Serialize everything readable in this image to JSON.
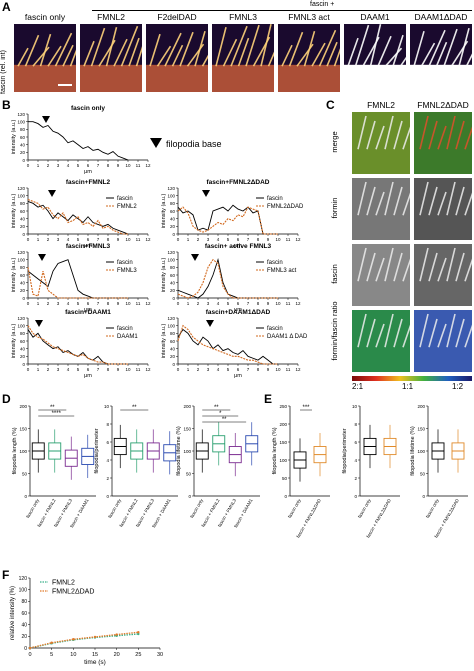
{
  "panelA": {
    "letter": "A",
    "header": "fascin +",
    "ylabel": "fascin (rel. int)",
    "labels": [
      "fascin only",
      "FMNL2",
      "F2delDAD",
      "FMNL3",
      "FMNL3 act",
      "DAAM1",
      "DAAM1ΔDAD"
    ]
  },
  "panelB": {
    "letter": "B",
    "legend_marker": "filopodia base",
    "plots": [
      {
        "title": "fascin only",
        "series": [
          "fascin"
        ]
      },
      {
        "title": "fascin+FMNL2",
        "series": [
          "fascin",
          "FMNL2"
        ]
      },
      {
        "title": "fascin+FMNL2ΔDAD",
        "series": [
          "fascin",
          "FMNL2ΔDAD"
        ]
      },
      {
        "title": "fascin+FMNL3",
        "series": [
          "fascin",
          "FMNL3"
        ]
      },
      {
        "title": "fascin+ active FMNL3",
        "series": [
          "fascin",
          "FMNL3 act"
        ]
      },
      {
        "title": "fascin+DAAM1",
        "series": [
          "fascin",
          "DAAM1"
        ]
      },
      {
        "title": "fascin+DAAM1ΔDAD",
        "series": [
          "fascin",
          "DAAM1 Δ DAD"
        ]
      }
    ],
    "ylabel": "intensity (a.u.)",
    "xlabel": "μm",
    "xticks": [
      "0",
      "1",
      "2",
      "3",
      "4",
      "5",
      "6",
      "7",
      "8",
      "9",
      "10",
      "11",
      "12"
    ],
    "yticks": [
      "0",
      "20",
      "40",
      "60",
      "80",
      "100",
      "120"
    ]
  },
  "panelC": {
    "letter": "C",
    "col_labels": [
      "FMNL2",
      "FMNL2ΔDAD"
    ],
    "row_labels": [
      "merge",
      "formin",
      "fascin",
      "formin/fascin ratio"
    ],
    "ratio_ticks": [
      "2:1",
      "1:1",
      "1:2"
    ]
  },
  "panelD": {
    "letter": "D",
    "plots": [
      {
        "ylabel": "filopodia length (%)",
        "yticks": [
          "0",
          "50",
          "100",
          "150",
          "200"
        ],
        "sig": [
          "**",
          "****"
        ]
      },
      {
        "ylabel": "filopodia/perimeter",
        "yticks": [
          "0",
          "2",
          "4",
          "6",
          "8",
          "10"
        ],
        "sig": [
          "**"
        ]
      },
      {
        "ylabel": "filopodia lifetime (%)",
        "yticks": [
          "0",
          "50",
          "100",
          "150",
          "200"
        ],
        "sig": [
          "**",
          "*",
          "**"
        ]
      }
    ],
    "categories": [
      "fascin only",
      "fascin + FMNL2",
      "fascin + FMNL3",
      "fascin + DAAM1"
    ]
  },
  "panelE": {
    "letter": "E",
    "plots": [
      {
        "ylabel": "filopodia length (%)",
        "yticks": [
          "0",
          "50",
          "100",
          "150",
          "200",
          "250"
        ],
        "sig": [
          "***"
        ]
      },
      {
        "ylabel": "filopodia/perimeter",
        "yticks": [
          "0",
          "2",
          "4",
          "6",
          "8",
          "10"
        ],
        "sig": []
      },
      {
        "ylabel": "filopodia lifetime (%)",
        "yticks": [
          "0",
          "50",
          "100",
          "150",
          "200"
        ],
        "sig": []
      }
    ],
    "categories": [
      "fascin only",
      "fascin + FMNL2ΔDAD"
    ]
  },
  "panelF": {
    "letter": "F",
    "ylabel": "relative intensity (%)",
    "xlabel": "time (s)",
    "xticks": [
      "0",
      "5",
      "10",
      "15",
      "20",
      "25",
      "30"
    ],
    "yticks": [
      "0",
      "20",
      "40",
      "60",
      "80",
      "100",
      "120"
    ],
    "legend": [
      "FMNL2",
      "FMNL2ΔDAD"
    ]
  },
  "chart_data": [
    {
      "type": "line",
      "title": "fascin+FMNL2",
      "xlabel": "μm",
      "ylabel": "intensity (a.u.)",
      "x": [
        0,
        0.5,
        1,
        1.5,
        2,
        2.5,
        3,
        3.5,
        4,
        4.5,
        5,
        5.5,
        6,
        6.5,
        7,
        7.5,
        8,
        8.5,
        9,
        9.5,
        10
      ],
      "series": [
        {
          "name": "fascin",
          "values": [
            85,
            80,
            70,
            75,
            60,
            40,
            55,
            45,
            35,
            50,
            40,
            30,
            45,
            30,
            25,
            20,
            25,
            15,
            10,
            5,
            0
          ]
        },
        {
          "name": "FMNL2",
          "values": [
            90,
            85,
            80,
            65,
            70,
            50,
            40,
            55,
            30,
            35,
            45,
            25,
            30,
            20,
            35,
            15,
            20,
            10,
            5,
            0,
            0
          ]
        }
      ],
      "ylim": [
        0,
        120
      ],
      "xlim": [
        0,
        12
      ]
    },
    {
      "type": "box",
      "categories": [
        "fascin only",
        "fascin + FMNL2",
        "fascin + FMNL3",
        "fascin + DAAM1"
      ],
      "ylabel": "filopodia length (%)",
      "values": [
        100,
        100,
        85,
        88
      ]
    },
    {
      "type": "line",
      "xlabel": "time (s)",
      "ylabel": "relative intensity (%)",
      "x": [
        0,
        5,
        10,
        15,
        20,
        25
      ],
      "series": [
        {
          "name": "FMNL2",
          "values": [
            0,
            8,
            14,
            18,
            21,
            24
          ]
        },
        {
          "name": "FMNL2ΔDAD",
          "values": [
            0,
            9,
            15,
            19,
            23,
            27
          ]
        }
      ],
      "ylim": [
        0,
        120
      ]
    }
  ]
}
